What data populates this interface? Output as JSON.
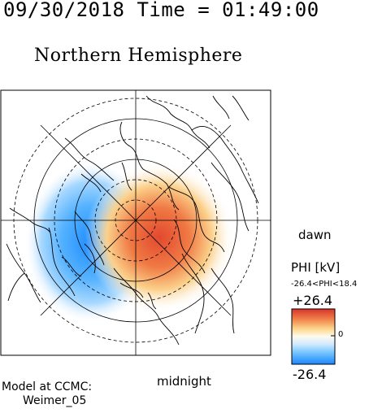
{
  "header": {
    "date_time": "09/30/2018 Time = 01:49:00",
    "hemisphere": "Northern Hemisphere"
  },
  "labels": {
    "dawn": "dawn",
    "midnight": "midnight",
    "model_line1": "Model at CCMC:",
    "model_line2": "Weimer_05"
  },
  "colorbar": {
    "title": "PHI [kV]",
    "range_text": "-26.4<PHI<18.4",
    "max_label": "+26.4",
    "zero_label": "0",
    "min_label": "-26.4"
  },
  "colors": {
    "positive": "#d93a2b",
    "negative": "#1e90ff",
    "neutral": "#fffbf0",
    "outline": "#000000"
  }
}
